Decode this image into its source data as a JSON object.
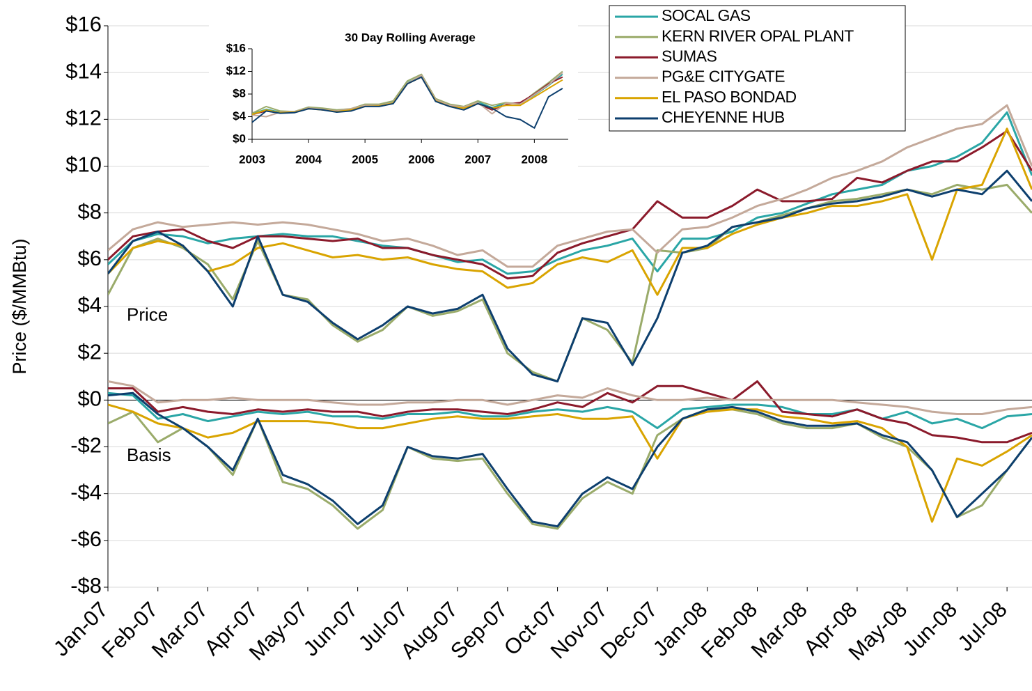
{
  "chart_data": [
    {
      "type": "line",
      "y_label": "Price ($/MMBtu)",
      "annotations": [
        "Price",
        "Basis"
      ],
      "legend": "upper right",
      "grid": true,
      "x": [
        0,
        0.5,
        1,
        1.5,
        2,
        2.5,
        3,
        3.5,
        4,
        4.5,
        5,
        5.5,
        6,
        6.5,
        7,
        7.5,
        8,
        8.5,
        9,
        9.5,
        10,
        10.5,
        11,
        11.5,
        12,
        12.5,
        13,
        13.5,
        14,
        14.5,
        15,
        15.5,
        16,
        16.5,
        17,
        17.5,
        18,
        18.5
      ],
      "xlim": [
        0,
        18.5
      ],
      "xticks": [
        {
          "value": 0,
          "label": "Jan-07"
        },
        {
          "value": 1,
          "label": "Feb-07"
        },
        {
          "value": 2,
          "label": "Mar-07"
        },
        {
          "value": 3,
          "label": "Apr-07"
        },
        {
          "value": 4,
          "label": "May-07"
        },
        {
          "value": 5,
          "label": "Jun-07"
        },
        {
          "value": 6,
          "label": "Jul-07"
        },
        {
          "value": 7,
          "label": "Aug-07"
        },
        {
          "value": 8,
          "label": "Sep-07"
        },
        {
          "value": 9,
          "label": "Oct-07"
        },
        {
          "value": 10,
          "label": "Nov-07"
        },
        {
          "value": 11,
          "label": "Dec-07"
        },
        {
          "value": 12,
          "label": "Jan-08"
        },
        {
          "value": 13,
          "label": "Feb-08"
        },
        {
          "value": 14,
          "label": "Mar-08"
        },
        {
          "value": 15,
          "label": "Apr-08"
        },
        {
          "value": 16,
          "label": "May-08"
        },
        {
          "value": 17,
          "label": "Jun-08"
        },
        {
          "value": 18,
          "label": "Jul-08"
        }
      ],
      "ylim": [
        -8,
        16
      ],
      "yticks": [
        {
          "value": -8,
          "label": "-$8"
        },
        {
          "value": -6,
          "label": "-$6"
        },
        {
          "value": -4,
          "label": "-$4"
        },
        {
          "value": -2,
          "label": "-$2"
        },
        {
          "value": 0,
          "label": "$0"
        },
        {
          "value": 2,
          "label": "$2"
        },
        {
          "value": 4,
          "label": "$4"
        },
        {
          "value": 6,
          "label": "$6"
        },
        {
          "value": 8,
          "label": "$8"
        },
        {
          "value": 10,
          "label": "$10"
        },
        {
          "value": 12,
          "label": "$12"
        },
        {
          "value": 14,
          "label": "$14"
        },
        {
          "value": 16,
          "label": "$16"
        }
      ],
      "series": [
        {
          "name": "SOCAL GAS",
          "color": "#2aa6a6",
          "values": [
            5.8,
            6.8,
            7.1,
            7.0,
            6.7,
            6.9,
            7.0,
            7.1,
            7.0,
            7.0,
            6.8,
            6.6,
            6.5,
            6.2,
            5.9,
            6.0,
            5.4,
            5.5,
            6.0,
            6.4,
            6.6,
            6.9,
            5.5,
            6.9,
            6.9,
            7.2,
            7.8,
            8.0,
            8.4,
            8.8,
            9.0,
            9.2,
            9.8,
            10.0,
            10.4,
            11.0,
            12.3,
            9.6
          ],
          "basis": [
            0.3,
            0.2,
            -0.8,
            -0.6,
            -0.9,
            -0.7,
            -0.5,
            -0.6,
            -0.5,
            -0.7,
            -0.7,
            -0.8,
            -0.6,
            -0.6,
            -0.5,
            -0.7,
            -0.7,
            -0.5,
            -0.4,
            -0.5,
            -0.3,
            -0.5,
            -1.2,
            -0.4,
            -0.3,
            -0.2,
            -0.2,
            -0.3,
            -0.6,
            -0.6,
            -0.4,
            -0.8,
            -0.5,
            -1.0,
            -0.8,
            -1.2,
            -0.7,
            -0.6
          ]
        },
        {
          "name": "KERN RIVER OPAL PLANT",
          "color": "#9aab6a",
          "values": [
            4.5,
            6.5,
            6.9,
            6.5,
            5.8,
            4.3,
            6.8,
            4.5,
            4.3,
            3.2,
            2.5,
            3.0,
            4.0,
            3.6,
            3.8,
            4.3,
            2.0,
            1.2,
            0.8,
            3.5,
            3.0,
            1.6,
            6.4,
            6.3,
            6.5,
            7.4,
            7.6,
            7.9,
            8.2,
            8.5,
            8.6,
            8.8,
            9.0,
            8.8,
            9.2,
            9.0,
            9.2,
            8.0
          ],
          "basis": [
            -1.0,
            -0.5,
            -1.8,
            -1.2,
            -2.0,
            -3.2,
            -0.8,
            -3.5,
            -3.8,
            -4.5,
            -5.5,
            -4.7,
            -2.0,
            -2.5,
            -2.6,
            -2.5,
            -4.0,
            -5.3,
            -5.5,
            -4.2,
            -3.5,
            -4.0,
            -1.5,
            -0.8,
            -0.4,
            -0.4,
            -0.6,
            -1.0,
            -1.2,
            -1.2,
            -1.0,
            -1.6,
            -2.0,
            -3.0,
            -5.0,
            -4.5,
            -3.0,
            -1.6
          ]
        },
        {
          "name": "SUMAS",
          "color": "#8b1a2b",
          "values": [
            6.0,
            7.0,
            7.2,
            7.3,
            6.8,
            6.5,
            7.0,
            7.0,
            6.9,
            6.8,
            6.9,
            6.5,
            6.5,
            6.2,
            6.0,
            5.8,
            5.2,
            5.3,
            6.3,
            6.7,
            7.0,
            7.3,
            8.5,
            7.8,
            7.8,
            8.3,
            9.0,
            8.5,
            8.5,
            8.6,
            9.5,
            9.3,
            9.8,
            10.2,
            10.2,
            10.8,
            11.5,
            9.8
          ],
          "basis": [
            0.5,
            0.5,
            -0.5,
            -0.3,
            -0.5,
            -0.6,
            -0.4,
            -0.5,
            -0.4,
            -0.5,
            -0.5,
            -0.7,
            -0.5,
            -0.4,
            -0.4,
            -0.5,
            -0.6,
            -0.4,
            -0.1,
            -0.3,
            0.3,
            -0.1,
            0.6,
            0.6,
            0.3,
            0.0,
            0.8,
            -0.5,
            -0.6,
            -0.7,
            -0.4,
            -0.8,
            -1.0,
            -1.5,
            -1.6,
            -1.8,
            -1.8,
            -1.4
          ]
        },
        {
          "name": "PG&E CITYGATE",
          "color": "#c4a99a",
          "values": [
            6.4,
            7.3,
            7.6,
            7.4,
            7.5,
            7.6,
            7.5,
            7.6,
            7.5,
            7.3,
            7.1,
            6.8,
            6.9,
            6.6,
            6.2,
            6.4,
            5.7,
            5.7,
            6.6,
            6.9,
            7.2,
            7.3,
            6.3,
            7.3,
            7.4,
            7.8,
            8.3,
            8.6,
            9.0,
            9.5,
            9.8,
            10.2,
            10.8,
            11.2,
            11.6,
            11.8,
            12.6,
            10.0
          ],
          "basis": [
            0.8,
            0.6,
            -0.1,
            0.0,
            0.0,
            0.1,
            0.0,
            0.0,
            0.0,
            -0.1,
            -0.2,
            -0.2,
            -0.1,
            -0.1,
            0.0,
            0.0,
            -0.2,
            0.0,
            0.2,
            0.1,
            0.5,
            0.2,
            0.0,
            0.0,
            0.1,
            0.0,
            0.0,
            0.0,
            0.0,
            0.0,
            -0.1,
            -0.2,
            -0.3,
            -0.5,
            -0.6,
            -0.6,
            -0.4,
            -0.3
          ]
        },
        {
          "name": "EL PASO BONDAD",
          "color": "#d9a400",
          "values": [
            5.4,
            6.5,
            6.8,
            6.6,
            5.5,
            5.8,
            6.5,
            6.7,
            6.4,
            6.1,
            6.2,
            6.0,
            6.1,
            5.8,
            5.6,
            5.5,
            4.8,
            5.0,
            5.8,
            6.1,
            5.9,
            6.4,
            4.5,
            6.5,
            6.5,
            7.1,
            7.5,
            7.8,
            8.0,
            8.3,
            8.3,
            8.5,
            8.8,
            6.0,
            9.0,
            9.2,
            11.6,
            9.0
          ],
          "basis": [
            -0.2,
            -0.5,
            -1.0,
            -1.2,
            -1.6,
            -1.4,
            -0.9,
            -0.9,
            -0.9,
            -1.0,
            -1.2,
            -1.2,
            -1.0,
            -0.8,
            -0.7,
            -0.8,
            -0.8,
            -0.7,
            -0.6,
            -0.8,
            -0.8,
            -0.7,
            -2.5,
            -0.8,
            -0.5,
            -0.4,
            -0.4,
            -0.7,
            -0.8,
            -1.0,
            -0.9,
            -1.2,
            -2.0,
            -5.2,
            -2.5,
            -2.8,
            -2.2,
            -1.5
          ]
        },
        {
          "name": "CHEYENNE HUB",
          "color": "#0d3f6e",
          "values": [
            5.4,
            6.8,
            7.2,
            6.6,
            5.5,
            4.0,
            7.0,
            4.5,
            4.2,
            3.3,
            2.6,
            3.2,
            4.0,
            3.7,
            3.9,
            4.5,
            2.2,
            1.1,
            0.8,
            3.5,
            3.3,
            1.5,
            3.5,
            6.3,
            6.6,
            7.4,
            7.6,
            7.8,
            8.2,
            8.4,
            8.5,
            8.7,
            9.0,
            8.7,
            9.0,
            8.8,
            9.8,
            8.5
          ],
          "basis": [
            0.2,
            0.3,
            -0.6,
            -1.2,
            -2.0,
            -3.0,
            -0.8,
            -3.2,
            -3.6,
            -4.3,
            -5.3,
            -4.5,
            -2.0,
            -2.4,
            -2.5,
            -2.3,
            -3.8,
            -5.2,
            -5.4,
            -4.0,
            -3.3,
            -3.8,
            -2.0,
            -0.8,
            -0.4,
            -0.3,
            -0.5,
            -0.9,
            -1.1,
            -1.1,
            -1.0,
            -1.5,
            -1.8,
            -3.0,
            -5.0,
            -4.0,
            -3.0,
            -1.6
          ]
        }
      ]
    },
    {
      "type": "line",
      "title": "30 Day Rolling Average",
      "x": [
        2003,
        2003.25,
        2003.5,
        2003.75,
        2004,
        2004.25,
        2004.5,
        2004.75,
        2005,
        2005.25,
        2005.5,
        2005.75,
        2006,
        2006.25,
        2006.5,
        2006.75,
        2007,
        2007.25,
        2007.5,
        2007.75,
        2008,
        2008.25,
        2008.5
      ],
      "xlim": [
        2003,
        2008.6
      ],
      "xticks": [
        2003,
        2004,
        2005,
        2006,
        2007,
        2008
      ],
      "ylim": [
        0,
        16
      ],
      "yticks": [
        {
          "value": 0,
          "label": "$0"
        },
        {
          "value": 4,
          "label": "$4"
        },
        {
          "value": 8,
          "label": "$8"
        },
        {
          "value": 12,
          "label": "$12"
        },
        {
          "value": 16,
          "label": "$16"
        }
      ],
      "series": [
        {
          "color": "#2aa6a6",
          "values": [
            4.5,
            5.3,
            4.8,
            4.9,
            5.6,
            5.3,
            5.0,
            5.3,
            6.0,
            6.0,
            6.6,
            10.0,
            11.2,
            7.0,
            6.0,
            5.6,
            6.6,
            5.6,
            6.4,
            6.3,
            7.8,
            9.5,
            11.5
          ]
        },
        {
          "color": "#9aab6a",
          "values": [
            4.6,
            5.8,
            5.0,
            4.9,
            5.7,
            5.5,
            5.2,
            5.4,
            6.2,
            6.2,
            6.8,
            10.3,
            11.5,
            7.2,
            6.2,
            5.8,
            6.8,
            6.0,
            6.5,
            6.2,
            8.2,
            10.0,
            12.0
          ]
        },
        {
          "color": "#8b1a2b",
          "values": [
            4.4,
            5.0,
            4.7,
            4.8,
            5.5,
            5.2,
            5.0,
            5.2,
            5.9,
            5.9,
            6.4,
            9.8,
            11.0,
            6.8,
            5.9,
            5.5,
            6.3,
            5.2,
            6.2,
            6.5,
            8.0,
            9.8,
            11.0
          ]
        },
        {
          "color": "#c4a99a",
          "values": [
            4.3,
            4.0,
            4.8,
            4.9,
            5.5,
            5.3,
            5.0,
            5.4,
            6.0,
            6.0,
            6.5,
            9.9,
            11.3,
            7.0,
            6.0,
            5.7,
            6.5,
            4.5,
            6.4,
            6.2,
            7.9,
            9.6,
            11.8
          ]
        },
        {
          "color": "#d9a400",
          "values": [
            4.4,
            5.2,
            4.7,
            4.8,
            5.4,
            5.2,
            4.9,
            5.2,
            5.8,
            5.9,
            6.4,
            9.8,
            11.0,
            6.8,
            5.8,
            5.5,
            6.3,
            5.5,
            6.0,
            6.0,
            7.5,
            9.0,
            10.5
          ]
        },
        {
          "color": "#0d3f6e",
          "values": [
            3.0,
            5.0,
            4.6,
            4.7,
            5.4,
            5.2,
            4.8,
            5.0,
            5.8,
            5.8,
            6.3,
            9.8,
            11.0,
            6.7,
            5.8,
            5.2,
            6.3,
            5.5,
            4.0,
            3.5,
            2.0,
            7.5,
            9.0
          ]
        }
      ]
    }
  ]
}
